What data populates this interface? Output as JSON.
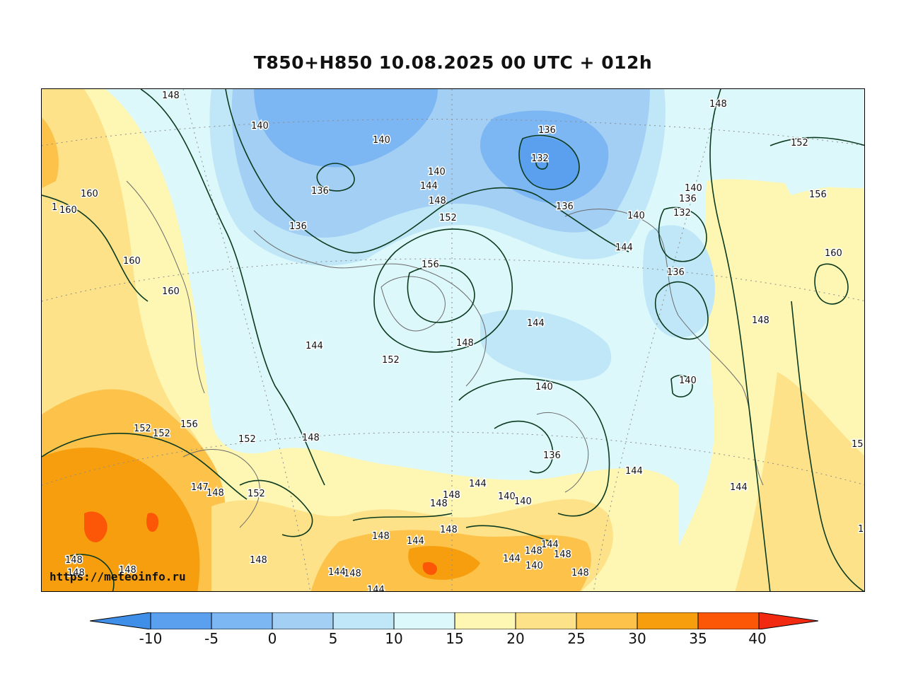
{
  "title": "T850+H850 10.08.2025 00 UTC + 012h",
  "watermark": "https://meteoinfo.ru",
  "colors": {
    "c_lt_m10": "#3f8ee8",
    "c_m10_m5": "#5aa0ee",
    "c_m5_0": "#7cb6f3",
    "c_0_5": "#a3cff5",
    "c_5_10": "#bfe7f7",
    "c_10_15": "#dcf8fb",
    "c_15_20": "#fef6b3",
    "c_20_25": "#fde289",
    "c_25_30": "#fcc24a",
    "c_30_35": "#f79e0e",
    "c_35_40": "#fb5707",
    "c_gt_40": "#f22a12",
    "contour": "#0c3a1f",
    "coast": "#6b6b6b"
  },
  "colorbar": {
    "ticks": [
      "-10",
      "-5",
      "0",
      "5",
      "10",
      "15",
      "20",
      "25",
      "30",
      "35",
      "40"
    ]
  },
  "contour_labels": [
    "148",
    "140",
    "140",
    "140",
    "144",
    "148",
    "152",
    "136",
    "136",
    "156",
    "144",
    "152",
    "148",
    "136",
    "132",
    "136",
    "148",
    "152",
    "156",
    "140",
    "136",
    "132",
    "140",
    "144",
    "136",
    "160",
    "148",
    "144",
    "140",
    "144",
    "140",
    "136",
    "148",
    "144",
    "144",
    "144",
    "140",
    "140",
    "148",
    "148",
    "148",
    "148",
    "144",
    "144",
    "148",
    "148",
    "140",
    "148",
    "148",
    "144",
    "144",
    "148",
    "148",
    "152",
    "156",
    "152",
    "152",
    "152",
    "147",
    "148",
    "148",
    "148",
    "160",
    "1",
    "160",
    "160",
    "160",
    "15",
    "1"
  ]
}
